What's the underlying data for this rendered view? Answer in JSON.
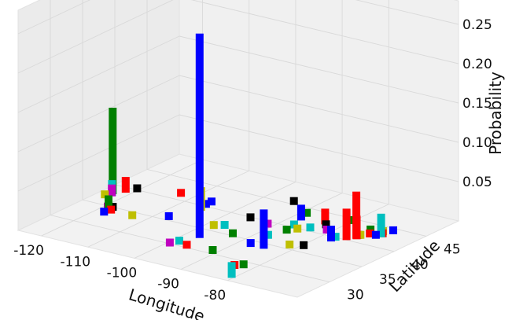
{
  "chart_data": {
    "type": "bar3d",
    "title": "",
    "xlabel": "Longitude",
    "ylabel": "Latitude",
    "zlabel": "Probability",
    "xlim": [
      -125,
      -65
    ],
    "ylim": [
      25,
      50
    ],
    "zlim": [
      0,
      0.28
    ],
    "xticks": [
      "-120",
      "-110",
      "-100",
      "-90",
      "-80"
    ],
    "yticks": [
      "30",
      "35",
      "40",
      "45"
    ],
    "zticks": [
      "0.05",
      "0.10",
      "0.15",
      "0.20",
      "0.25"
    ],
    "grid": true,
    "colors": [
      "#0000ff",
      "#008000",
      "#ff0000",
      "#00bfbf",
      "#bf00bf",
      "#bfbf00",
      "#000000"
    ],
    "bars": [
      {
        "lon": -122.4,
        "lat": 37.8,
        "p": 0.11,
        "color": "#008000"
      },
      {
        "lon": -122.0,
        "lat": 37.4,
        "p": 0.02,
        "color": "#00bfbf"
      },
      {
        "lon": -121.9,
        "lat": 37.3,
        "p": 0.015,
        "color": "#bf00bf"
      },
      {
        "lon": -122.3,
        "lat": 36.5,
        "p": 0.01,
        "color": "#bfbf00"
      },
      {
        "lon": -121.0,
        "lat": 38.8,
        "p": 0.02,
        "color": "#ff0000"
      },
      {
        "lon": -119.5,
        "lat": 39.5,
        "p": 0.01,
        "color": "#000000"
      },
      {
        "lon": -118.2,
        "lat": 34.0,
        "p": 0.01,
        "color": "#bf00bf"
      },
      {
        "lon": -117.2,
        "lat": 32.7,
        "p": 0.01,
        "color": "#0000ff"
      },
      {
        "lon": -117.9,
        "lat": 33.9,
        "p": 0.02,
        "color": "#008000"
      },
      {
        "lon": -117.4,
        "lat": 34.2,
        "p": 0.01,
        "color": "#000000"
      },
      {
        "lon": -116.8,
        "lat": 33.5,
        "p": 0.01,
        "color": "#ff0000"
      },
      {
        "lon": -112.1,
        "lat": 33.4,
        "p": 0.01,
        "color": "#bfbf00"
      },
      {
        "lon": -111.9,
        "lat": 40.8,
        "p": 0.01,
        "color": "#ff0000"
      },
      {
        "lon": -105.0,
        "lat": 39.7,
        "p": 0.01,
        "color": "#0000ff"
      },
      {
        "lon": -104.8,
        "lat": 38.8,
        "p": 0.03,
        "color": "#bfbf00"
      },
      {
        "lon": -104.9,
        "lat": 40.5,
        "p": 0.01,
        "color": "#0000ff"
      },
      {
        "lon": -106.6,
        "lat": 35.1,
        "p": 0.01,
        "color": "#0000ff"
      },
      {
        "lon": -97.5,
        "lat": 35.5,
        "p": 0.01,
        "color": "#bfbf00"
      },
      {
        "lon": -96.8,
        "lat": 32.8,
        "p": 0.26,
        "color": "#0000ff"
      },
      {
        "lon": -95.4,
        "lat": 29.8,
        "p": 0.01,
        "color": "#ff0000"
      },
      {
        "lon": -97.7,
        "lat": 30.3,
        "p": 0.01,
        "color": "#00bfbf"
      },
      {
        "lon": -98.5,
        "lat": 29.4,
        "p": 0.01,
        "color": "#bf00bf"
      },
      {
        "lon": -96.0,
        "lat": 36.1,
        "p": 0.01,
        "color": "#00bfbf"
      },
      {
        "lon": -94.6,
        "lat": 39.1,
        "p": 0.01,
        "color": "#000000"
      },
      {
        "lon": -93.3,
        "lat": 44.9,
        "p": 0.01,
        "color": "#000000"
      },
      {
        "lon": -92.3,
        "lat": 34.7,
        "p": 0.01,
        "color": "#008000"
      },
      {
        "lon": -90.2,
        "lat": 38.6,
        "p": 0.01,
        "color": "#bf00bf"
      },
      {
        "lon": -90.1,
        "lat": 30.0,
        "p": 0.01,
        "color": "#008000"
      },
      {
        "lon": -87.6,
        "lat": 41.9,
        "p": 0.02,
        "color": "#0000ff"
      },
      {
        "lon": -87.9,
        "lat": 43.0,
        "p": 0.01,
        "color": "#008000"
      },
      {
        "lon": -86.8,
        "lat": 33.5,
        "p": 0.01,
        "color": "#0000ff"
      },
      {
        "lon": -86.2,
        "lat": 39.8,
        "p": 0.01,
        "color": "#00bfbf"
      },
      {
        "lon": -85.7,
        "lat": 38.3,
        "p": 0.01,
        "color": "#008000"
      },
      {
        "lon": -86.8,
        "lat": 36.2,
        "p": 0.01,
        "color": "#00bfbf"
      },
      {
        "lon": -84.4,
        "lat": 33.8,
        "p": 0.05,
        "color": "#0000ff"
      },
      {
        "lon": -84.5,
        "lat": 39.1,
        "p": 0.01,
        "color": "#bfbf00"
      },
      {
        "lon": -83.0,
        "lat": 40.0,
        "p": 0.01,
        "color": "#00bfbf"
      },
      {
        "lon": -83.0,
        "lat": 42.3,
        "p": 0.02,
        "color": "#ff0000"
      },
      {
        "lon": -81.7,
        "lat": 41.5,
        "p": 0.01,
        "color": "#000000"
      },
      {
        "lon": -80.2,
        "lat": 25.8,
        "p": 0.02,
        "color": "#00bfbf"
      },
      {
        "lon": -81.4,
        "lat": 28.5,
        "p": 0.01,
        "color": "#008000"
      },
      {
        "lon": -82.5,
        "lat": 27.9,
        "p": 0.01,
        "color": "#ff0000"
      },
      {
        "lon": -80.8,
        "lat": 35.2,
        "p": 0.01,
        "color": "#bfbf00"
      },
      {
        "lon": -78.6,
        "lat": 35.8,
        "p": 0.01,
        "color": "#000000"
      },
      {
        "lon": -80.0,
        "lat": 40.4,
        "p": 0.01,
        "color": "#bf00bf"
      },
      {
        "lon": -79.4,
        "lat": 43.7,
        "p": 0.01,
        "color": "#008000"
      },
      {
        "lon": -77.0,
        "lat": 38.9,
        "p": 0.02,
        "color": "#0000ff"
      },
      {
        "lon": -76.6,
        "lat": 39.3,
        "p": 0.01,
        "color": "#00bfbf"
      },
      {
        "lon": -75.2,
        "lat": 40.0,
        "p": 0.04,
        "color": "#ff0000"
      },
      {
        "lon": -74.0,
        "lat": 40.7,
        "p": 0.03,
        "color": "#ff0000"
      },
      {
        "lon": -74.2,
        "lat": 40.8,
        "p": 0.06,
        "color": "#ff0000"
      },
      {
        "lon": -73.9,
        "lat": 40.9,
        "p": 0.01,
        "color": "#000000"
      },
      {
        "lon": -73.6,
        "lat": 41.0,
        "p": 0.01,
        "color": "#bfbf00"
      },
      {
        "lon": -71.1,
        "lat": 42.4,
        "p": 0.03,
        "color": "#00bfbf"
      },
      {
        "lon": -71.4,
        "lat": 41.8,
        "p": 0.01,
        "color": "#0000ff"
      },
      {
        "lon": -72.7,
        "lat": 41.8,
        "p": 0.01,
        "color": "#ff0000"
      },
      {
        "lon": -70.3,
        "lat": 43.7,
        "p": 0.01,
        "color": "#0000ff"
      },
      {
        "lon": -73.8,
        "lat": 42.7,
        "p": 0.01,
        "color": "#008000"
      },
      {
        "lon": -71.5,
        "lat": 43.0,
        "p": 0.01,
        "color": "#bfbf00"
      },
      {
        "lon": -70.9,
        "lat": 42.5,
        "p": 0.01,
        "color": "#ff0000"
      }
    ]
  }
}
